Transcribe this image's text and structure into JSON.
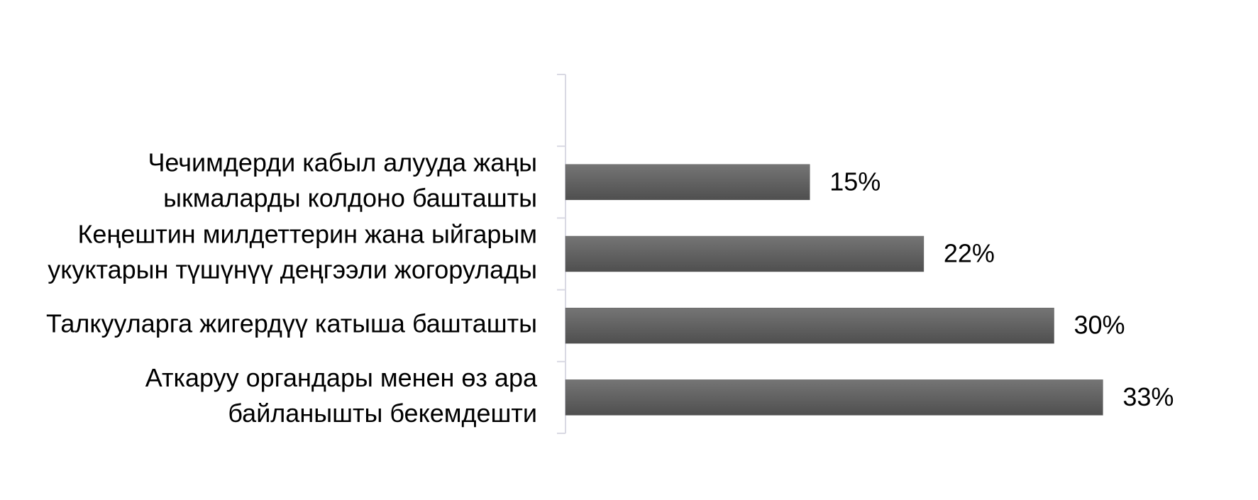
{
  "chart_data": {
    "type": "bar",
    "orientation": "horizontal",
    "categories": [
      null,
      [
        "Чечимдерди кабыл алууда жаңы",
        "ыкмаларды колдоно башташты"
      ],
      [
        "Кеңештин милдеттерин жана ыйгарым",
        "укуктарын түшүнүү деңгээли жогорулады"
      ],
      [
        "Талкууларга жигердүү катыша башташты"
      ],
      [
        "Аткаруу органдары менен өз ара",
        "байланышты бекемдешти"
      ]
    ],
    "values": [
      null,
      15,
      22,
      30,
      33
    ],
    "value_labels": [
      null,
      "15%",
      "22%",
      "30%",
      "33%"
    ],
    "color": "#5f5f5f",
    "xlim": [
      0,
      40
    ]
  }
}
